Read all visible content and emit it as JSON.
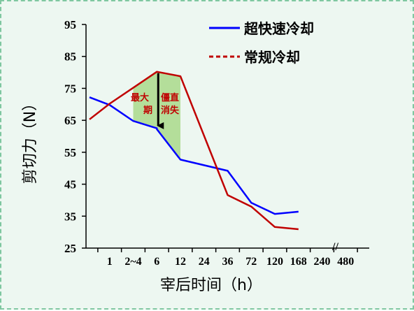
{
  "chart_data": {
    "type": "line",
    "x": [
      "1",
      "2~4",
      "6",
      "12",
      "24",
      "36",
      "72",
      "120",
      "168",
      "240",
      "480"
    ],
    "series": [
      {
        "name": "超快速冷却",
        "color": "#0000ff",
        "style": "solid",
        "points": [
          {
            "x": "0",
            "y": 72.2
          },
          {
            "x": "1",
            "y": 69.8
          },
          {
            "x": "2~4",
            "y": 64.8
          },
          {
            "x": "6",
            "y": 62.5
          },
          {
            "x": "6",
            "y": 62.2
          },
          {
            "x": "12",
            "y": 52.7
          },
          {
            "x": "36",
            "y": 49.2
          },
          {
            "x": "72",
            "y": 39.2
          },
          {
            "x": "120",
            "y": 35.7
          },
          {
            "x": "168",
            "y": 36.4
          }
        ]
      },
      {
        "name": "常规冷却",
        "color": "#c00000",
        "style": "solid",
        "points": [
          {
            "x": "0",
            "y": 65.3
          },
          {
            "x": "1",
            "y": 70.2
          },
          {
            "x": "6",
            "y": 80.2
          },
          {
            "x": "12",
            "y": 78.8
          },
          {
            "x": "36",
            "y": 41.6
          },
          {
            "x": "72",
            "y": 38.0
          },
          {
            "x": "120",
            "y": 31.6
          },
          {
            "x": "168",
            "y": 30.9
          }
        ]
      }
    ],
    "yticks": [
      25,
      35,
      45,
      55,
      65,
      75,
      85,
      95
    ],
    "ylim": [
      25,
      95
    ],
    "xlabel": "宰后时间（h）",
    "ylabel": "剪切力（N）",
    "legend_position": "top-right",
    "axis_break_symbol": "//",
    "shaded_region": {
      "x_from": "2~4",
      "x_to": "12",
      "color": "#a9d98b"
    },
    "arrow": {
      "x": "6",
      "y_from": 80.2,
      "y_to": 62.0,
      "color": "#000000"
    },
    "annotations": [
      {
        "text_top": "最大",
        "text_bottom": "期"
      },
      {
        "text_top": "僵直",
        "text_bottom": "消失"
      }
    ]
  }
}
